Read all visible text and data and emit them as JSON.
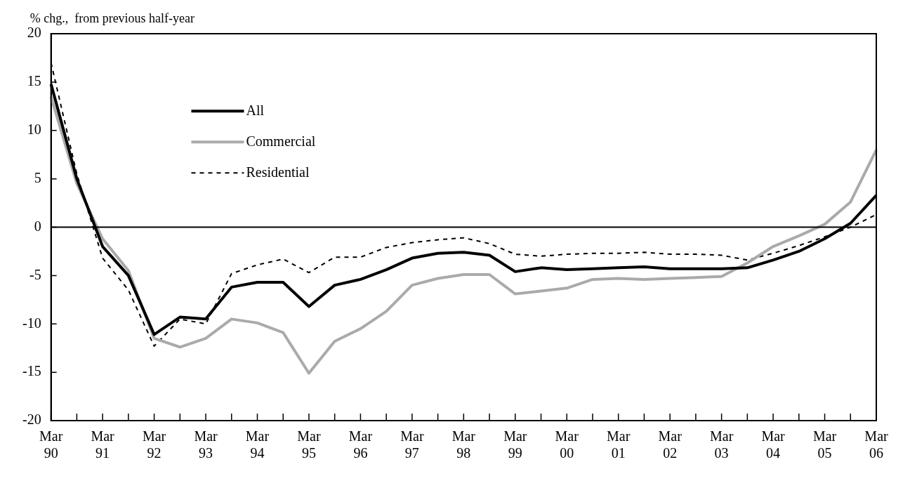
{
  "chart_data": {
    "type": "line",
    "ylabel": "% chg.,  from previous half-year",
    "categories": [
      "Mar 90",
      null,
      "Mar 91",
      null,
      "Mar 92",
      null,
      "Mar 93",
      null,
      "Mar 94",
      null,
      "Mar 95",
      null,
      "Mar 96",
      null,
      "Mar 97",
      null,
      "Mar 98",
      null,
      "Mar 99",
      null,
      "Mar 00",
      null,
      "Mar 01",
      null,
      "Mar 02",
      null,
      "Mar 03",
      null,
      "Mar 04",
      null,
      "Mar 05",
      null,
      "Mar 06"
    ],
    "series": [
      {
        "name": "All",
        "color": "#000000",
        "line_style": "solid",
        "values": [
          14.8,
          5,
          -2,
          -5,
          -11.1,
          -9.3,
          -9.5,
          -6.2,
          -5.7,
          -5.7,
          -8.2,
          -6.0,
          -5.4,
          -4.4,
          -3.2,
          -2.7,
          -2.6,
          -2.9,
          -4.6,
          -4.2,
          -4.4,
          -4.3,
          -4.2,
          -4.1,
          -4.3,
          -4.3,
          -4.3,
          -4.2,
          -3.4,
          -2.5,
          -1.2,
          0.4,
          3.3
        ]
      },
      {
        "name": "Commercial",
        "color": "#aaaaaa",
        "line_style": "solid",
        "values": [
          13.5,
          4.5,
          -1.2,
          -4.5,
          -11.5,
          -12.4,
          -11.5,
          -9.5,
          -9.9,
          -10.9,
          -15.1,
          -11.8,
          -10.5,
          -8.7,
          -6.0,
          -5.3,
          -4.9,
          -4.9,
          -6.9,
          -6.6,
          -6.3,
          -5.4,
          -5.3,
          -5.4,
          -5.3,
          -5.2,
          -5.1,
          -3.7,
          -2.0,
          -0.9,
          0.3,
          2.6,
          8.0
        ]
      },
      {
        "name": "Residential",
        "color": "#000000",
        "line_style": "dashed",
        "values": [
          17,
          5.5,
          -3.2,
          -6.5,
          -12.3,
          -9.5,
          -10.0,
          -4.8,
          -3.9,
          -3.3,
          -4.7,
          -3.1,
          -3.1,
          -2.1,
          -1.6,
          -1.3,
          -1.1,
          -1.7,
          -2.8,
          -3.0,
          -2.8,
          -2.7,
          -2.7,
          -2.6,
          -2.8,
          -2.8,
          -2.9,
          -3.4,
          -2.7,
          -1.9,
          -1.0,
          0.0,
          1.3
        ]
      }
    ],
    "ylim": [
      -20,
      20
    ],
    "yticks": [
      -20,
      -15,
      -10,
      -5,
      0,
      5,
      10,
      15,
      20
    ],
    "ref_lines": [
      {
        "axis": "y",
        "value": 0,
        "color": "#000000"
      }
    ],
    "grid": false,
    "legend": "top left",
    "marker": "none"
  }
}
